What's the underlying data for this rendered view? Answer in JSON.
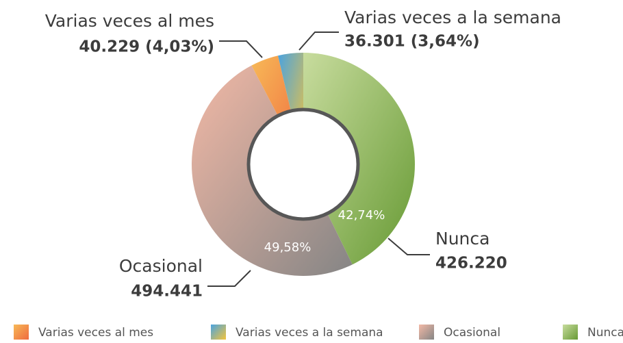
{
  "chart_data": {
    "type": "donut",
    "categories": [
      "Varias veces al mes",
      "Varias veces a la semana",
      "Ocasional",
      "Nunca"
    ],
    "values": [
      40229,
      36301,
      494441,
      426220
    ],
    "value_labels": [
      "40.229 (4,03%)",
      "36.301 (3,64%)",
      "494.441",
      "426.220"
    ],
    "percentages": [
      4.03,
      3.64,
      49.58,
      42.74
    ],
    "percentage_labels": [
      null,
      null,
      "49,58%",
      "42,74%"
    ],
    "colors": [
      [
        "#f7b957",
        "#ef6b3f"
      ],
      [
        "#4aa3e0",
        "#f3c43c"
      ],
      [
        "#f3b9a6",
        "#858585"
      ],
      [
        "#c8dc9e",
        "#679a34"
      ]
    ],
    "legend": "bottom"
  }
}
